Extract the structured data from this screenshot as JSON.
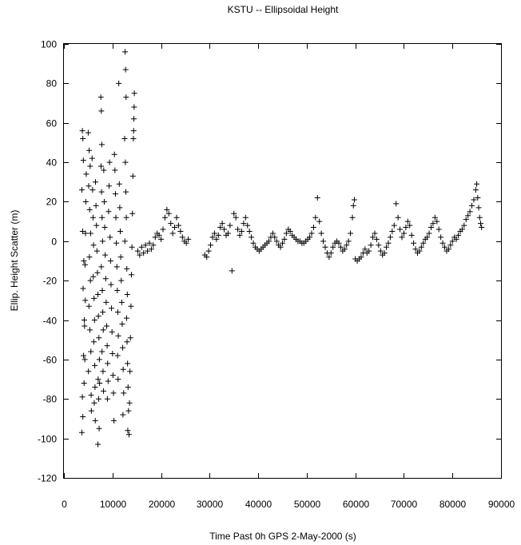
{
  "chart_data": {
    "type": "scatter",
    "title": "KSTU -- Ellipsoidal Height",
    "xlabel": "Time Past 0h GPS 2-May-2000  (s)",
    "ylabel": "Ellip. Height Scatter  (m)",
    "xlim": [
      0,
      90000
    ],
    "ylim": [
      -120,
      100
    ],
    "xticks": [
      0,
      10000,
      20000,
      30000,
      40000,
      50000,
      60000,
      70000,
      80000,
      90000
    ],
    "yticks": [
      -120,
      -100,
      -80,
      -60,
      -40,
      -20,
      0,
      20,
      40,
      60,
      80,
      100
    ],
    "grid": false,
    "legend": "none",
    "marker": "plus",
    "marker_color": "#000000",
    "points": [
      [
        3800,
        56
      ],
      [
        3900,
        52
      ],
      [
        4000,
        41
      ],
      [
        3700,
        26
      ],
      [
        3850,
        5
      ],
      [
        4100,
        -10
      ],
      [
        3950,
        -24
      ],
      [
        4200,
        -40
      ],
      [
        4050,
        -58
      ],
      [
        4150,
        -72
      ],
      [
        3900,
        -89
      ],
      [
        3700,
        -97
      ],
      [
        3800,
        -79
      ],
      [
        4300,
        -60
      ],
      [
        4250,
        -43
      ],
      [
        4400,
        -30
      ],
      [
        4350,
        -12
      ],
      [
        4450,
        4
      ],
      [
        4500,
        20
      ],
      [
        4600,
        34
      ],
      [
        5000,
        55
      ],
      [
        5200,
        46
      ],
      [
        5400,
        38
      ],
      [
        5100,
        28
      ],
      [
        5300,
        16
      ],
      [
        5500,
        4
      ],
      [
        5250,
        -8
      ],
      [
        5450,
        -20
      ],
      [
        5150,
        -33
      ],
      [
        5350,
        -45
      ],
      [
        5550,
        -56
      ],
      [
        5050,
        -66
      ],
      [
        5600,
        -78
      ],
      [
        5650,
        -86
      ],
      [
        5800,
        42
      ],
      [
        5900,
        26
      ],
      [
        6000,
        12
      ],
      [
        6100,
        -2
      ],
      [
        6050,
        -18
      ],
      [
        6200,
        -29
      ],
      [
        6300,
        -40
      ],
      [
        6150,
        -51
      ],
      [
        6350,
        -63
      ],
      [
        6400,
        -74
      ],
      [
        6250,
        -82
      ],
      [
        6450,
        -91
      ],
      [
        6500,
        30
      ],
      [
        6600,
        18
      ],
      [
        6700,
        8
      ],
      [
        6800,
        -5
      ],
      [
        6900,
        -16
      ],
      [
        7000,
        -27
      ],
      [
        7100,
        -38
      ],
      [
        7200,
        -49
      ],
      [
        7300,
        -60
      ],
      [
        7050,
        -70
      ],
      [
        7150,
        -80
      ],
      [
        7250,
        -95
      ],
      [
        7000,
        -103
      ],
      [
        7350,
        -72
      ],
      [
        7600,
        73
      ],
      [
        7700,
        66
      ],
      [
        7800,
        49
      ],
      [
        7650,
        38
      ],
      [
        7750,
        25
      ],
      [
        7850,
        12
      ],
      [
        7950,
        0
      ],
      [
        7700,
        -13
      ],
      [
        7900,
        -25
      ],
      [
        8000,
        -36
      ],
      [
        8100,
        -45
      ],
      [
        7850,
        -56
      ],
      [
        8050,
        -66
      ],
      [
        8150,
        -76
      ],
      [
        8200,
        36
      ],
      [
        8300,
        20
      ],
      [
        8400,
        7
      ],
      [
        8500,
        -7
      ],
      [
        8600,
        -19
      ],
      [
        8700,
        -31
      ],
      [
        8800,
        -43
      ],
      [
        8900,
        -53
      ],
      [
        9000,
        -62
      ],
      [
        9100,
        -71
      ],
      [
        8950,
        -80
      ],
      [
        9200,
        15
      ],
      [
        9300,
        28
      ],
      [
        9400,
        40
      ],
      [
        9500,
        2
      ],
      [
        9600,
        -10
      ],
      [
        9700,
        -22
      ],
      [
        9800,
        -34
      ],
      [
        9900,
        -46
      ],
      [
        10000,
        -57
      ],
      [
        10100,
        -68
      ],
      [
        10200,
        -77
      ],
      [
        10300,
        -91
      ],
      [
        10400,
        44
      ],
      [
        10500,
        36
      ],
      [
        10600,
        24
      ],
      [
        10700,
        12
      ],
      [
        10800,
        -1
      ],
      [
        10900,
        -13
      ],
      [
        11000,
        -25
      ],
      [
        11100,
        -36
      ],
      [
        11200,
        -48
      ],
      [
        11050,
        -58
      ],
      [
        11150,
        -70
      ],
      [
        11300,
        80
      ],
      [
        11400,
        29
      ],
      [
        11500,
        17
      ],
      [
        11600,
        5
      ],
      [
        11700,
        -8
      ],
      [
        11800,
        -20
      ],
      [
        11900,
        -31
      ],
      [
        12000,
        -42
      ],
      [
        12100,
        -54
      ],
      [
        12200,
        -65
      ],
      [
        12300,
        -77
      ],
      [
        12150,
        -88
      ],
      [
        12600,
        96
      ],
      [
        12700,
        87
      ],
      [
        12800,
        73
      ],
      [
        12500,
        52
      ],
      [
        12650,
        40
      ],
      [
        12750,
        25
      ],
      [
        12850,
        12
      ],
      [
        12550,
        0
      ],
      [
        12950,
        -14
      ],
      [
        13050,
        -27
      ],
      [
        12900,
        -39
      ],
      [
        13000,
        -51
      ],
      [
        13100,
        -62
      ],
      [
        13200,
        -74
      ],
      [
        13300,
        -86
      ],
      [
        13150,
        -96
      ],
      [
        13400,
        -98
      ],
      [
        13500,
        -82
      ],
      [
        13600,
        -66
      ],
      [
        13700,
        -49
      ],
      [
        13800,
        -33
      ],
      [
        13900,
        -17
      ],
      [
        14000,
        -3
      ],
      [
        14100,
        14
      ],
      [
        14200,
        33
      ],
      [
        14300,
        52
      ],
      [
        14400,
        62
      ],
      [
        14500,
        75
      ],
      [
        14450,
        68
      ],
      [
        14350,
        56
      ],
      [
        15200,
        -5
      ],
      [
        15600,
        -7
      ],
      [
        16000,
        -3
      ],
      [
        16400,
        -6
      ],
      [
        16800,
        -2
      ],
      [
        17200,
        -5
      ],
      [
        17600,
        -1
      ],
      [
        18000,
        -4
      ],
      [
        18400,
        -2
      ],
      [
        18800,
        2
      ],
      [
        19200,
        4
      ],
      [
        19600,
        3
      ],
      [
        20000,
        1
      ],
      [
        20400,
        6
      ],
      [
        20800,
        12
      ],
      [
        21200,
        16
      ],
      [
        21600,
        14
      ],
      [
        22000,
        9
      ],
      [
        22400,
        4
      ],
      [
        22800,
        7
      ],
      [
        23200,
        12
      ],
      [
        23600,
        8
      ],
      [
        24000,
        5
      ],
      [
        24400,
        2
      ],
      [
        24800,
        0
      ],
      [
        25200,
        -1
      ],
      [
        25600,
        1
      ],
      [
        29000,
        -7
      ],
      [
        29400,
        -8
      ],
      [
        29800,
        -5
      ],
      [
        30200,
        -2
      ],
      [
        30600,
        2
      ],
      [
        31000,
        4
      ],
      [
        31400,
        1
      ],
      [
        31800,
        3
      ],
      [
        32200,
        7
      ],
      [
        32600,
        9
      ],
      [
        33000,
        6
      ],
      [
        33400,
        3
      ],
      [
        33800,
        4
      ],
      [
        34200,
        8
      ],
      [
        34600,
        -15
      ],
      [
        35000,
        14
      ],
      [
        35400,
        12
      ],
      [
        35800,
        6
      ],
      [
        36200,
        3
      ],
      [
        36600,
        5
      ],
      [
        37000,
        9
      ],
      [
        37400,
        12
      ],
      [
        37800,
        8
      ],
      [
        38200,
        5
      ],
      [
        38600,
        2
      ],
      [
        39000,
        -1
      ],
      [
        39400,
        -3
      ],
      [
        39800,
        -4
      ],
      [
        40200,
        -5
      ],
      [
        40600,
        -4
      ],
      [
        41000,
        -3
      ],
      [
        41400,
        -2
      ],
      [
        41800,
        -1
      ],
      [
        42200,
        0
      ],
      [
        42600,
        2
      ],
      [
        43000,
        4
      ],
      [
        43400,
        2
      ],
      [
        43800,
        0
      ],
      [
        44200,
        -2
      ],
      [
        44600,
        -3
      ],
      [
        45000,
        -1
      ],
      [
        45400,
        1
      ],
      [
        45800,
        4
      ],
      [
        46200,
        6
      ],
      [
        46600,
        5
      ],
      [
        47000,
        3
      ],
      [
        47400,
        2
      ],
      [
        47800,
        1
      ],
      [
        48200,
        0
      ],
      [
        48600,
        0
      ],
      [
        49000,
        -1
      ],
      [
        49400,
        -1
      ],
      [
        49800,
        0
      ],
      [
        50200,
        1
      ],
      [
        50600,
        2
      ],
      [
        51000,
        4
      ],
      [
        51400,
        7
      ],
      [
        51800,
        12
      ],
      [
        52200,
        22
      ],
      [
        52600,
        10
      ],
      [
        53000,
        4
      ],
      [
        53400,
        0
      ],
      [
        53800,
        -3
      ],
      [
        54200,
        -6
      ],
      [
        54600,
        -8
      ],
      [
        55000,
        -6
      ],
      [
        55400,
        -3
      ],
      [
        55800,
        -1
      ],
      [
        56200,
        0
      ],
      [
        56600,
        -1
      ],
      [
        57000,
        -3
      ],
      [
        57400,
        -5
      ],
      [
        57800,
        -4
      ],
      [
        58200,
        -2
      ],
      [
        58600,
        0
      ],
      [
        59000,
        4
      ],
      [
        59400,
        12
      ],
      [
        59800,
        21
      ],
      [
        59600,
        18
      ],
      [
        60000,
        -9
      ],
      [
        60400,
        -10
      ],
      [
        60800,
        -9
      ],
      [
        61200,
        -8
      ],
      [
        61600,
        -6
      ],
      [
        62000,
        -4
      ],
      [
        62400,
        -6
      ],
      [
        62800,
        -5
      ],
      [
        63200,
        -2
      ],
      [
        63600,
        2
      ],
      [
        64000,
        4
      ],
      [
        64400,
        1
      ],
      [
        64800,
        -2
      ],
      [
        65200,
        -5
      ],
      [
        65600,
        -7
      ],
      [
        66000,
        -6
      ],
      [
        66400,
        -3
      ],
      [
        66800,
        -1
      ],
      [
        67200,
        2
      ],
      [
        67600,
        5
      ],
      [
        68000,
        8
      ],
      [
        68400,
        19
      ],
      [
        68800,
        12
      ],
      [
        69200,
        6
      ],
      [
        69600,
        2
      ],
      [
        70000,
        4
      ],
      [
        70400,
        7
      ],
      [
        70800,
        10
      ],
      [
        71200,
        8
      ],
      [
        71600,
        3
      ],
      [
        72000,
        -1
      ],
      [
        72400,
        -4
      ],
      [
        72800,
        -6
      ],
      [
        73200,
        -5
      ],
      [
        73600,
        -3
      ],
      [
        74000,
        -1
      ],
      [
        74400,
        1
      ],
      [
        74800,
        2
      ],
      [
        75200,
        4
      ],
      [
        75600,
        7
      ],
      [
        76000,
        9
      ],
      [
        76400,
        12
      ],
      [
        76800,
        10
      ],
      [
        77200,
        6
      ],
      [
        77600,
        2
      ],
      [
        78000,
        -1
      ],
      [
        78400,
        -3
      ],
      [
        78800,
        -5
      ],
      [
        79200,
        -4
      ],
      [
        79600,
        -2
      ],
      [
        80000,
        0
      ],
      [
        80400,
        2
      ],
      [
        80800,
        1
      ],
      [
        81200,
        3
      ],
      [
        81600,
        5
      ],
      [
        82000,
        6
      ],
      [
        82400,
        8
      ],
      [
        82800,
        11
      ],
      [
        83200,
        13
      ],
      [
        83600,
        15
      ],
      [
        84000,
        18
      ],
      [
        84400,
        21
      ],
      [
        84800,
        26
      ],
      [
        85000,
        29
      ],
      [
        85200,
        22
      ],
      [
        85400,
        17
      ],
      [
        85600,
        12
      ],
      [
        85800,
        9
      ],
      [
        86000,
        7
      ]
    ]
  }
}
